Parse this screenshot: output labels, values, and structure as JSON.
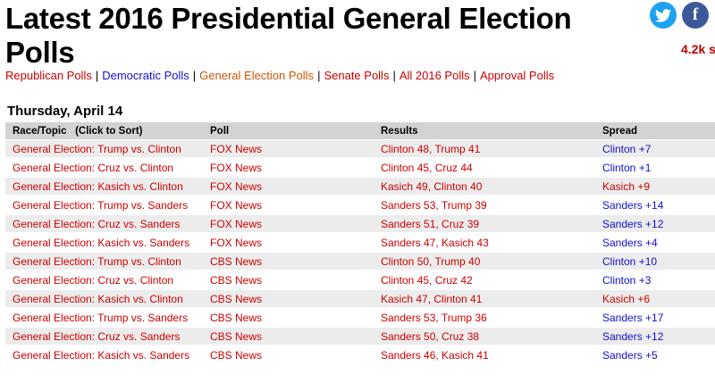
{
  "page": {
    "title": "Latest 2016 Presidential General Election Polls"
  },
  "social": {
    "twitter_icon": "twitter-icon",
    "facebook_icon": "facebook-icon",
    "facebook_label": "f",
    "share_count": "4.2k",
    "share_suffix": "s",
    "colors": {
      "twitter": "#1da1f2",
      "facebook": "#3b5998",
      "share": "#c00000"
    }
  },
  "nav": {
    "links": [
      {
        "label": "Republican Polls",
        "color": "#cc0000"
      },
      {
        "label": "Democratic Polls",
        "color": "#1010cc"
      },
      {
        "label": "General Election Polls",
        "color": "#cc5500"
      },
      {
        "label": "Senate Polls",
        "color": "#cc0000"
      },
      {
        "label": "All 2016 Polls",
        "color": "#cc0000"
      },
      {
        "label": "Approval Polls",
        "color": "#cc0000"
      }
    ],
    "separator": "|"
  },
  "section": {
    "date": "Thursday, April 14"
  },
  "table": {
    "headers": {
      "race": "Race/Topic   (Click to Sort)",
      "poll": "Poll",
      "results": "Results",
      "spread": "Spread"
    },
    "rows": [
      {
        "race": "General Election: Trump vs. Clinton",
        "poll": "FOX News",
        "results": "Clinton 48, Trump 41",
        "spread": "Clinton +7",
        "spread_party": "dem"
      },
      {
        "race": "General Election: Cruz vs. Clinton",
        "poll": "FOX News",
        "results": "Clinton 45, Cruz 44",
        "spread": "Clinton +1",
        "spread_party": "dem"
      },
      {
        "race": "General Election: Kasich vs. Clinton",
        "poll": "FOX News",
        "results": "Kasich 49, Clinton 40",
        "spread": "Kasich +9",
        "spread_party": "rep"
      },
      {
        "race": "General Election: Trump vs. Sanders",
        "poll": "FOX News",
        "results": "Sanders 53, Trump 39",
        "spread": "Sanders +14",
        "spread_party": "dem"
      },
      {
        "race": "General Election: Cruz vs. Sanders",
        "poll": "FOX News",
        "results": "Sanders 51, Cruz 39",
        "spread": "Sanders +12",
        "spread_party": "dem"
      },
      {
        "race": "General Election: Kasich vs. Sanders",
        "poll": "FOX News",
        "results": "Sanders 47, Kasich 43",
        "spread": "Sanders +4",
        "spread_party": "dem"
      },
      {
        "race": "General Election: Trump vs. Clinton",
        "poll": "CBS News",
        "results": "Clinton 50, Trump 40",
        "spread": "Clinton +10",
        "spread_party": "dem"
      },
      {
        "race": "General Election: Cruz vs. Clinton",
        "poll": "CBS News",
        "results": "Clinton 45, Cruz 42",
        "spread": "Clinton +3",
        "spread_party": "dem"
      },
      {
        "race": "General Election: Kasich vs. Clinton",
        "poll": "CBS News",
        "results": "Kasich 47, Clinton 41",
        "spread": "Kasich +6",
        "spread_party": "rep"
      },
      {
        "race": "General Election: Trump vs. Sanders",
        "poll": "CBS News",
        "results": "Sanders 53, Trump 36",
        "spread": "Sanders +17",
        "spread_party": "dem"
      },
      {
        "race": "General Election: Cruz vs. Sanders",
        "poll": "CBS News",
        "results": "Sanders 50, Cruz 38",
        "spread": "Sanders +12",
        "spread_party": "dem"
      },
      {
        "race": "General Election: Kasich vs. Sanders",
        "poll": "CBS News",
        "results": "Sanders 46, Kasich 41",
        "spread": "Sanders +5",
        "spread_party": "dem"
      }
    ]
  }
}
